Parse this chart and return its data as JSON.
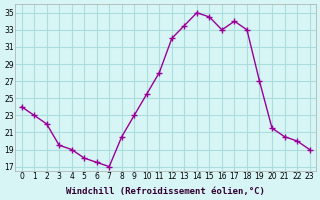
{
  "x": [
    0,
    1,
    2,
    3,
    4,
    5,
    6,
    7,
    8,
    9,
    10,
    11,
    12,
    13,
    14,
    15,
    16,
    17,
    18,
    19,
    20,
    21,
    22,
    23
  ],
  "y": [
    24,
    23,
    22,
    19.5,
    19,
    18,
    17.5,
    17,
    20.5,
    23,
    25.5,
    28,
    32,
    33.5,
    35,
    34.5,
    33,
    34,
    33,
    27,
    21.5,
    20.5,
    20,
    19
  ],
  "line_color": "#990099",
  "marker": "+",
  "bg_color": "#d8f5f5",
  "grid_color": "#aadddd",
  "xlabel": "Windchill (Refroidissement éolien,°C)",
  "yticks": [
    17,
    19,
    21,
    23,
    25,
    27,
    29,
    31,
    33,
    35
  ],
  "xticks": [
    0,
    1,
    2,
    3,
    4,
    5,
    6,
    7,
    8,
    9,
    10,
    11,
    12,
    13,
    14,
    15,
    16,
    17,
    18,
    19,
    20,
    21,
    22,
    23
  ],
  "ylim": [
    16.5,
    36
  ],
  "xlim": [
    -0.5,
    23.5
  ]
}
